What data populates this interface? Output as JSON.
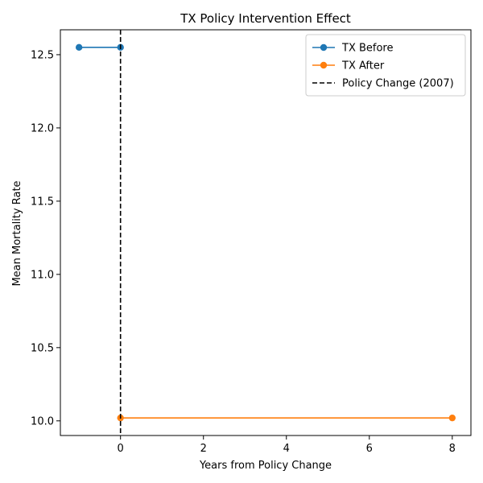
{
  "chart_data": {
    "type": "line",
    "title": "TX Policy Intervention Effect",
    "xlabel": "Years from Policy Change",
    "ylabel": "Mean Mortality Rate",
    "xlim": [
      -1.45,
      8.45
    ],
    "ylim": [
      9.9,
      12.67
    ],
    "xticks": [
      0,
      2,
      4,
      6,
      8
    ],
    "yticks": [
      10.0,
      10.5,
      11.0,
      11.5,
      12.0,
      12.5
    ],
    "grid": false,
    "legend_position": "top-right",
    "series": [
      {
        "name": "TX Before",
        "color": "#1f77b4",
        "x": [
          -1,
          0
        ],
        "y": [
          12.55,
          12.55
        ]
      },
      {
        "name": "TX After",
        "color": "#ff7f0e",
        "x": [
          0,
          8
        ],
        "y": [
          10.02,
          10.02
        ]
      }
    ],
    "reference_lines": [
      {
        "name": "Policy Change (2007)",
        "orientation": "vertical",
        "x": 0,
        "color": "#000000",
        "style": "dashed"
      }
    ]
  }
}
